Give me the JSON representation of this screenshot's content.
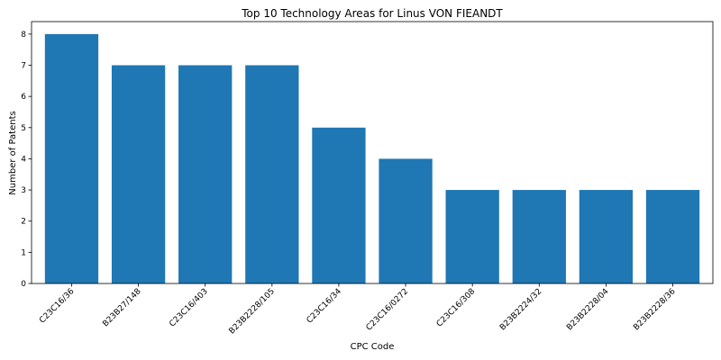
{
  "chart_data": {
    "type": "bar",
    "title": "Top 10 Technology Areas for Linus VON FIEANDT",
    "xlabel": "CPC Code",
    "ylabel": "Number of Patents",
    "categories": [
      "C23C16/36",
      "B23B27/148",
      "C23C16/403",
      "B23B2228/105",
      "C23C16/34",
      "C23C16/0272",
      "C23C16/308",
      "B23B2224/32",
      "B23B2228/04",
      "B23B2228/36"
    ],
    "values": [
      8,
      7,
      7,
      7,
      5,
      4,
      3,
      3,
      3,
      3
    ],
    "ylim": [
      0,
      8.4
    ],
    "yticks": [
      0,
      1,
      2,
      3,
      4,
      5,
      6,
      7,
      8
    ],
    "grid": false,
    "bar_color": "#1f77b4"
  }
}
